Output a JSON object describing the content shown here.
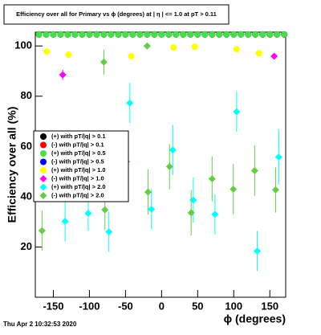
{
  "chart_data": {
    "type": "scatter",
    "title": "Efficiency over all for Primary vs ϕ (degrees) at | η | <= 1.0 at pT > 0.11",
    "x_label": "ϕ (degrees)",
    "y_label": "Efficiency over all (%)",
    "footer": "Thu Apr  2 10:32:53 2020",
    "xlim": [
      -175,
      172
    ],
    "ylim": [
      0,
      105.5
    ],
    "xticks": [
      -150,
      -100,
      -50,
      0,
      50,
      100,
      150
    ],
    "yticks": [
      20,
      40,
      60,
      80,
      100
    ],
    "series": [
      {
        "name": "(+) with pT/|q| > 0.1",
        "color": "#000000",
        "marker": "circle",
        "x": [
          -170,
          -160,
          -150,
          -140,
          -130,
          -120,
          -110,
          -100,
          -90,
          -80,
          -70,
          -60,
          -50,
          -40,
          -30,
          -20,
          -10,
          0,
          10,
          20,
          30,
          40,
          50,
          60,
          70,
          80,
          90,
          100,
          110,
          120,
          130,
          140,
          150,
          160,
          170
        ],
        "values": [
          104.6,
          104.6,
          104.6,
          104.6,
          104.6,
          104.6,
          104.6,
          104.6,
          104.6,
          104.6,
          104.6,
          104.6,
          104.6,
          104.6,
          104.6,
          104.6,
          104.6,
          104.6,
          104.6,
          104.6,
          104.6,
          104.6,
          104.6,
          104.6,
          104.6,
          104.6,
          104.6,
          104.6,
          104.6,
          104.6,
          104.6,
          104.6,
          104.6,
          104.6,
          104.6
        ]
      },
      {
        "name": "(-) with pT/|q| > 0.1",
        "color": "#ff0000",
        "marker": "circle",
        "x": [
          -170,
          -160,
          -150,
          -140,
          -130,
          -120,
          -110,
          -100,
          -90,
          -80,
          -70,
          -60,
          -50,
          -40,
          -30,
          -20,
          -10,
          0,
          10,
          20,
          30,
          40,
          50,
          60,
          70,
          80,
          90,
          100,
          110,
          120,
          130,
          140,
          150,
          160,
          170
        ],
        "values": [
          104.6,
          104.6,
          104.6,
          104.6,
          104.6,
          104.6,
          104.6,
          104.6,
          104.6,
          104.6,
          104.6,
          104.6,
          104.6,
          104.6,
          104.6,
          104.6,
          104.6,
          104.6,
          104.6,
          104.6,
          104.6,
          104.6,
          104.6,
          104.6,
          104.6,
          104.6,
          104.6,
          104.6,
          104.6,
          104.6,
          104.6,
          104.6,
          104.6,
          104.6,
          104.6
        ]
      },
      {
        "name": "(-) with pT/|q| > 0.5",
        "color": "#0000ff",
        "marker": "circle",
        "x": [
          -170,
          -160,
          -150,
          -140,
          -130,
          -120,
          -110,
          -100,
          -90,
          -80,
          -70,
          -60,
          -50,
          -40,
          -30,
          -20,
          -10,
          0,
          10,
          20,
          30,
          40,
          50,
          60,
          70,
          80,
          90,
          100,
          110,
          120,
          130,
          140,
          150,
          160,
          170
        ],
        "values": [
          104.6,
          104.6,
          104.6,
          104.6,
          104.6,
          104.6,
          104.6,
          104.6,
          104.6,
          104.6,
          104.6,
          104.6,
          104.6,
          104.6,
          104.6,
          104.6,
          104.6,
          104.6,
          104.6,
          104.6,
          104.6,
          104.6,
          104.6,
          104.6,
          104.6,
          104.6,
          104.6,
          104.6,
          104.6,
          104.6,
          104.6,
          104.6,
          104.6,
          104.6,
          104.6
        ]
      },
      {
        "name": "(+) with pT/|q| > 0.5",
        "color": "#44e044",
        "marker": "circle",
        "x": [
          -170,
          -160,
          -150,
          -140,
          -130,
          -120,
          -110,
          -100,
          -90,
          -80,
          -70,
          -60,
          -50,
          -40,
          -30,
          -20,
          -10,
          0,
          10,
          20,
          30,
          40,
          50,
          60,
          70,
          80,
          90,
          100,
          110,
          120,
          130,
          140,
          150,
          160,
          170
        ],
        "values": [
          104.6,
          104.6,
          104.6,
          104.6,
          104.6,
          104.6,
          104.6,
          104.6,
          104.6,
          104.6,
          104.6,
          104.6,
          104.6,
          104.6,
          104.6,
          104.6,
          104.6,
          104.6,
          104.6,
          104.6,
          104.6,
          104.6,
          104.6,
          104.6,
          104.6,
          104.6,
          104.6,
          104.6,
          104.6,
          104.6,
          104.6,
          104.6,
          104.6,
          104.6,
          104.6
        ]
      },
      {
        "name": "(+) with pT/|q| > 1.0",
        "color": "#ffff00",
        "marker": "circle",
        "x": [
          -159,
          -129,
          -42,
          16.6,
          46,
          104,
          135
        ],
        "values": [
          97.8,
          96.5,
          95.9,
          99.4,
          99.7,
          98.7,
          97.1
        ],
        "errors": [
          1,
          1,
          1,
          1,
          1,
          1,
          1
        ]
      },
      {
        "name": "(-) with pT/|q| > 1.0",
        "color": "#ff00ff",
        "marker": "diamond",
        "x": [
          -137,
          156
        ],
        "values": [
          88.5,
          95.9
        ],
        "errors": [
          2,
          1
        ]
      },
      {
        "name": "(+) with pT/|q| > 2.0",
        "color": "#00ffff",
        "marker": "diamond",
        "x": [
          -133.7,
          -101.7,
          -73,
          -44,
          -14,
          15.5,
          44,
          74,
          104,
          132.6,
          162.4
        ],
        "values": [
          30.2,
          33.4,
          26,
          77.3,
          35,
          58.6,
          38.7,
          33,
          73.8,
          18.4,
          55.8
        ],
        "errors": [
          8,
          7,
          8,
          8,
          8,
          10,
          9,
          8,
          8,
          8,
          11
        ]
      },
      {
        "name": "(-) with pT/|q| > 2.0",
        "color": "#66cc44",
        "marker": "diamond",
        "x": [
          -165.7,
          -80,
          -78.5,
          -48.6,
          -20,
          -18.8,
          11,
          41,
          70,
          99.4,
          129,
          158
        ],
        "values": [
          26.5,
          93.6,
          34.8,
          54,
          100,
          41.9,
          52,
          33.6,
          47.1,
          43,
          50.4,
          42.7
        ],
        "errors": [
          8,
          5,
          8,
          9,
          1,
          9,
          9,
          9,
          9,
          10,
          10,
          9
        ]
      }
    ]
  }
}
